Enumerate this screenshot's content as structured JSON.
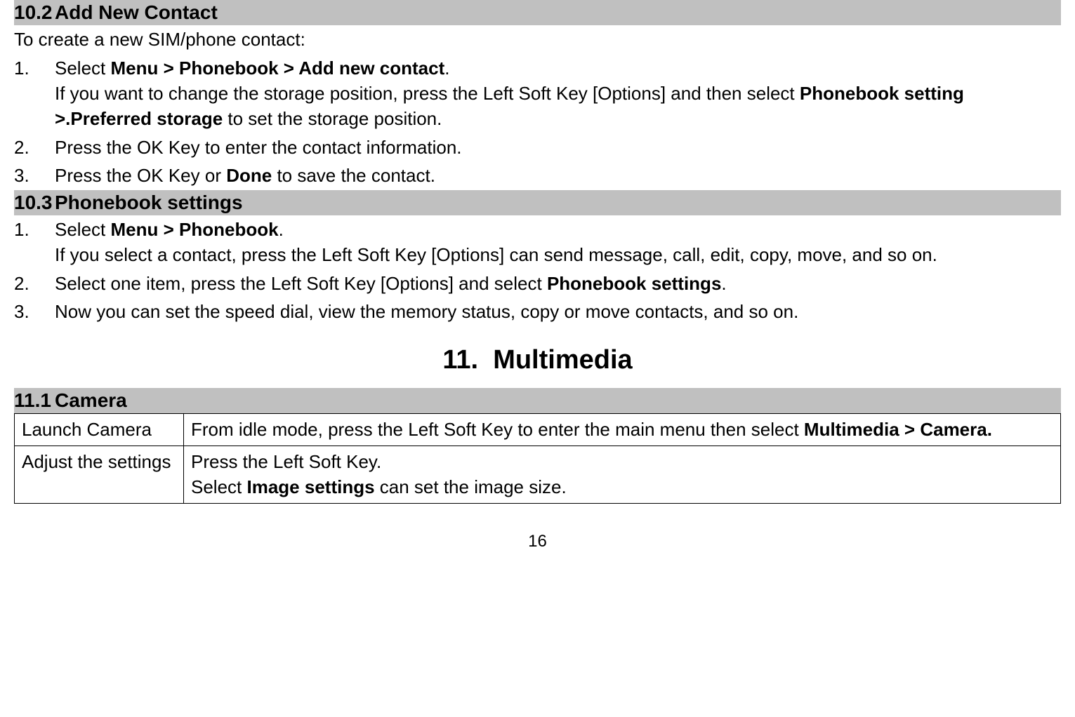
{
  "section102": {
    "num": "10.2",
    "title": "Add New Contact",
    "intro": "To create a new SIM/phone contact:",
    "items": [
      {
        "num": "1.",
        "line1_pre": "Select ",
        "line1_bold": "Menu > Phonebook > Add new contact",
        "line1_post": ".",
        "line2_pre": "If you want to change the storage position, press the Left Soft Key [Options] and then select ",
        "line2_bold": "Phonebook setting >.Preferred storage",
        "line2_post": " to set the storage position."
      },
      {
        "num": "2.",
        "line1": "Press the OK Key to enter the contact information."
      },
      {
        "num": "3.",
        "line1_pre": "Press the OK Key or ",
        "line1_bold": "Done",
        "line1_post": " to save the contact."
      }
    ]
  },
  "section103": {
    "num": "10.3",
    "title": "Phonebook settings",
    "items": [
      {
        "num": "1.",
        "line1_pre": "Select ",
        "line1_bold": "Menu > Phonebook",
        "line1_post": ".",
        "line2": "If you select a contact, press the Left Soft Key [Options] can send message, call, edit, copy, move, and so on."
      },
      {
        "num": "2.",
        "line1_pre": "Select one item, press the Left Soft Key [Options] and select ",
        "line1_bold": "Phonebook settings",
        "line1_post": "."
      },
      {
        "num": "3.",
        "line1": "Now you can set the speed dial, view the memory status, copy or move contacts, and so on."
      }
    ]
  },
  "chapter11": {
    "num": "11.",
    "title": "Multimedia"
  },
  "section111": {
    "num": "11.1",
    "title": "Camera",
    "rows": [
      {
        "col1": "Launch Camera",
        "col2_pre": "From idle mode, press the Left Soft Key to enter the main menu then select ",
        "col2_bold": "Multimedia > Camera."
      },
      {
        "col1": "Adjust the settings",
        "col2_line1": "Press the Left Soft Key.",
        "col2_line2_pre": "Select ",
        "col2_line2_bold": "Image settings",
        "col2_line2_post": " can set the image size."
      }
    ]
  },
  "pageNumber": "16"
}
